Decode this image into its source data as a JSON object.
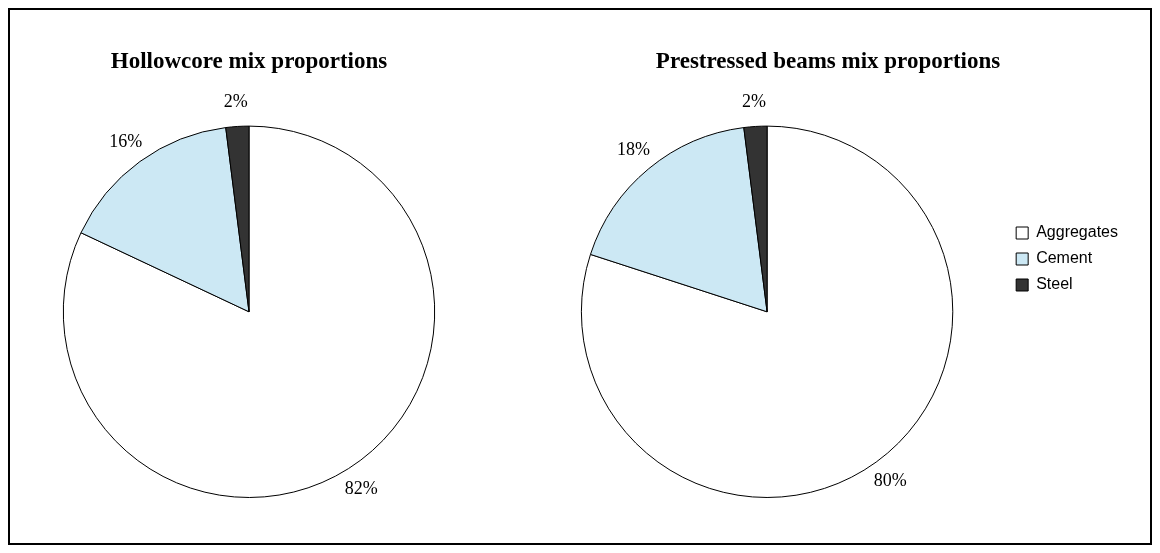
{
  "chart_data": [
    {
      "type": "pie",
      "title": "Hollowcore mix proportions",
      "categories": [
        null,
        null,
        null
      ],
      "values": [
        82,
        16,
        2
      ],
      "colors": [
        "#ffffff",
        "#cce8f4",
        "#333333"
      ],
      "value_labels": [
        "82%",
        "16%",
        "2%"
      ]
    },
    {
      "type": "pie",
      "title": "Prestressed beams mix proportions",
      "categories": [
        "Aggregates",
        "Cement",
        "Steel"
      ],
      "values": [
        80,
        18,
        2
      ],
      "colors": [
        "#ffffff",
        "#cce8f4",
        "#333333"
      ],
      "value_labels": [
        "80%",
        "18%",
        "2%"
      ],
      "legend": "right"
    }
  ]
}
